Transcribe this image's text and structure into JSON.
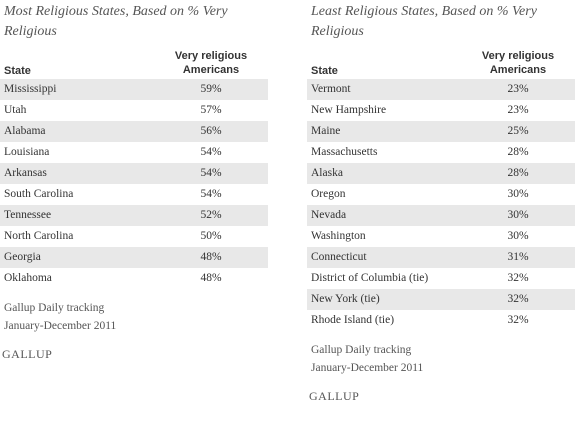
{
  "tables": [
    {
      "title": "Most Religious States, Based on % Very Religious",
      "columns": [
        "State",
        "Very religious Americans"
      ],
      "rows": [
        [
          "Mississippi",
          "59%"
        ],
        [
          "Utah",
          "57%"
        ],
        [
          "Alabama",
          "56%"
        ],
        [
          "Louisiana",
          "54%"
        ],
        [
          "Arkansas",
          "54%"
        ],
        [
          "South Carolina",
          "54%"
        ],
        [
          "Tennessee",
          "52%"
        ],
        [
          "North Carolina",
          "50%"
        ],
        [
          "Georgia",
          "48%"
        ],
        [
          "Oklahoma",
          "48%"
        ]
      ],
      "source": [
        "Gallup Daily tracking",
        "January-December 2011"
      ],
      "logo": "GALLUP"
    },
    {
      "title": "Least Religious States, Based on % Very Religious",
      "columns": [
        "State",
        "Very religious Americans"
      ],
      "rows": [
        [
          "Vermont",
          "23%"
        ],
        [
          "New Hampshire",
          "23%"
        ],
        [
          "Maine",
          "25%"
        ],
        [
          "Massachusetts",
          "28%"
        ],
        [
          "Alaska",
          "28%"
        ],
        [
          "Oregon",
          "30%"
        ],
        [
          "Nevada",
          "30%"
        ],
        [
          "Washington",
          "30%"
        ],
        [
          "Connecticut",
          "31%"
        ],
        [
          "District of Columbia (tie)",
          "32%"
        ],
        [
          "New York (tie)",
          "32%"
        ],
        [
          "Rhode Island (tie)",
          "32%"
        ]
      ],
      "source": [
        "Gallup Daily tracking",
        "January-December 2011"
      ],
      "logo": "GALLUP"
    }
  ]
}
